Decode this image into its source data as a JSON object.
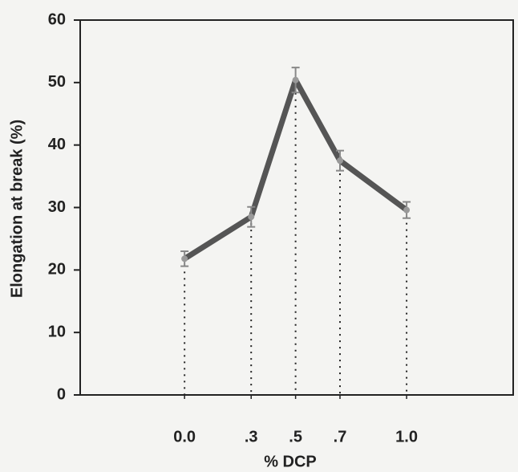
{
  "chart_data": {
    "type": "line",
    "xlabel": "% DCP",
    "ylabel": "Elongation at break (%)",
    "x": [
      0,
      0.3,
      0.5,
      0.7,
      1
    ],
    "series": [
      {
        "color": "#555555",
        "values": [
          21.8,
          28.5,
          50.4,
          37.5,
          29.6
        ],
        "errors": [
          1.2,
          1.6,
          2,
          1.6,
          1.3
        ]
      }
    ],
    "xlim": [
      -0.47,
      1.48
    ],
    "xticks": [
      {
        "value": 0,
        "label": "0.0"
      },
      {
        "value": 0.3,
        "label": ".3"
      },
      {
        "value": 0.5,
        "label": ".5"
      },
      {
        "value": 0.7,
        "label": ".7"
      },
      {
        "value": 1,
        "label": "1.0"
      }
    ],
    "ylim": [
      0,
      60
    ],
    "yticks": [
      0,
      10,
      20,
      30,
      40,
      50,
      60
    ],
    "drop_lines": true
  }
}
